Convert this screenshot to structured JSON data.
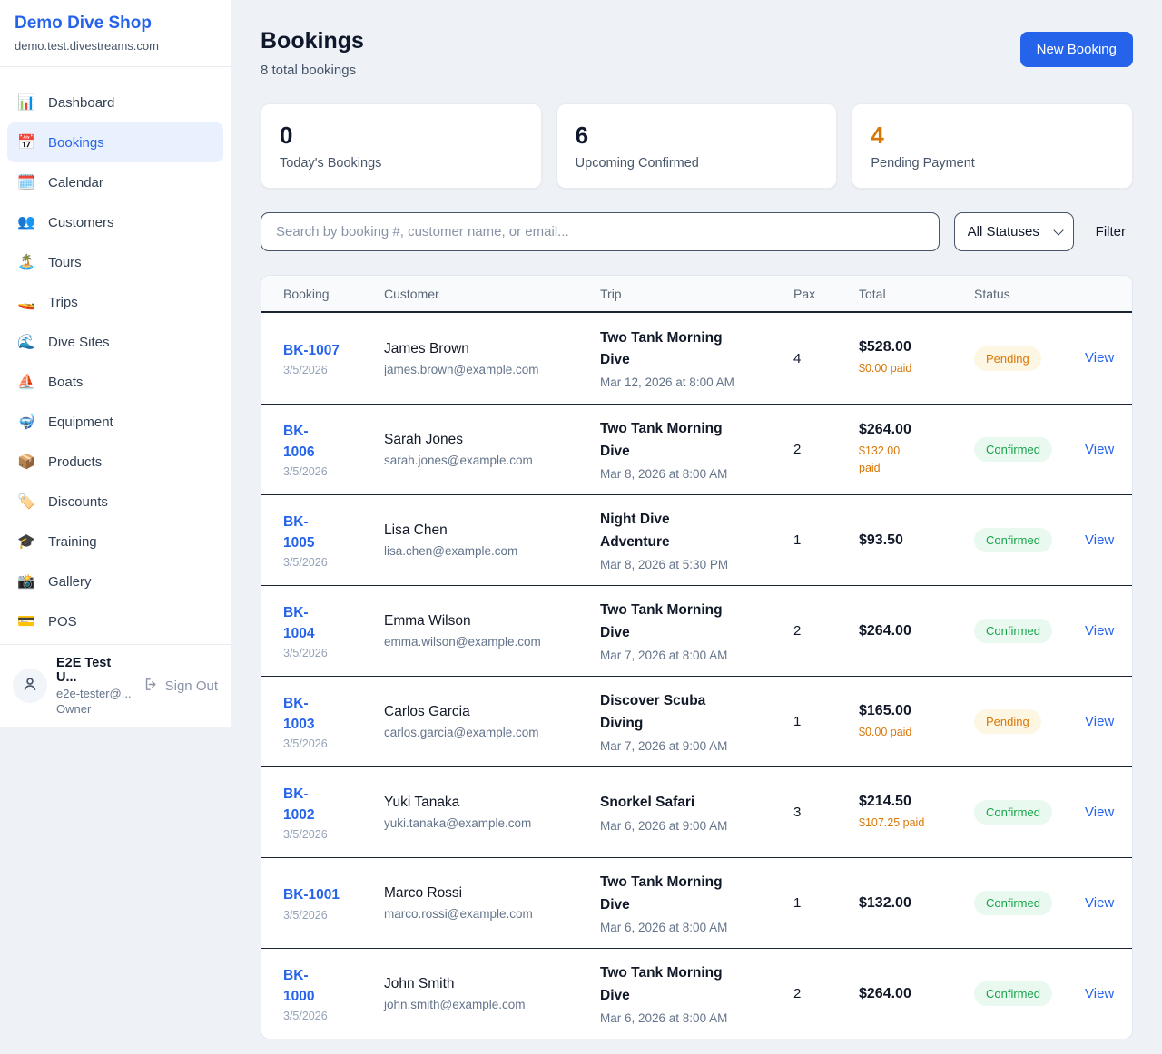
{
  "colors": {
    "accent_blue": "#2563eb",
    "pending_text": "#d97706",
    "pending_bg": "#fdf6e3",
    "confirmed_text": "#16a34a",
    "confirmed_bg": "#e9f9ef",
    "page_bg": "#eef1f6"
  },
  "sidebar": {
    "brand": "Demo Dive Shop",
    "domain": "demo.test.divestreams.com",
    "items": [
      {
        "icon": "📊",
        "label": "Dashboard",
        "active": false
      },
      {
        "icon": "📅",
        "label": "Bookings",
        "active": true
      },
      {
        "icon": "🗓️",
        "label": "Calendar",
        "active": false
      },
      {
        "icon": "👥",
        "label": "Customers",
        "active": false
      },
      {
        "icon": "🏝️",
        "label": "Tours",
        "active": false
      },
      {
        "icon": "🚤",
        "label": "Trips",
        "active": false
      },
      {
        "icon": "🌊",
        "label": "Dive Sites",
        "active": false
      },
      {
        "icon": "⛵",
        "label": "Boats",
        "active": false
      },
      {
        "icon": "🤿",
        "label": "Equipment",
        "active": false
      },
      {
        "icon": "📦",
        "label": "Products",
        "active": false
      },
      {
        "icon": "🏷️",
        "label": "Discounts",
        "active": false
      },
      {
        "icon": "🎓",
        "label": "Training",
        "active": false
      },
      {
        "icon": "📸",
        "label": "Gallery",
        "active": false
      },
      {
        "icon": "💳",
        "label": "POS",
        "active": false
      }
    ],
    "user": {
      "name": "E2E Test U...",
      "email": "e2e-tester@...",
      "role": "Owner",
      "signout_label": "Sign Out"
    }
  },
  "header": {
    "title": "Bookings",
    "subtitle": "8 total bookings",
    "new_booking_label": "New Booking"
  },
  "stats": [
    {
      "value": "0",
      "label": "Today's Bookings",
      "accent": "dark"
    },
    {
      "value": "6",
      "label": "Upcoming Confirmed",
      "accent": "dark"
    },
    {
      "value": "4",
      "label": "Pending Payment",
      "accent": "orange"
    }
  ],
  "controls": {
    "search_placeholder": "Search by booking #, customer name, or email...",
    "status_filter_value": "All Statuses",
    "filter_label": "Filter"
  },
  "table": {
    "columns": [
      "Booking",
      "Customer",
      "Trip",
      "Pax",
      "Total",
      "Status",
      ""
    ],
    "view_label": "View",
    "rows": [
      {
        "id": "BK-1007",
        "date": "3/5/2026",
        "name": "James Brown",
        "email": "james.brown@example.com",
        "trip": "Two Tank Morning Dive",
        "when": "Mar 12, 2026 at 8:00 AM",
        "pax": "4",
        "total": "$528.00",
        "paid": "$0.00 paid",
        "status": "Pending"
      },
      {
        "id": "BK-\n1006",
        "date": "3/5/2026",
        "name": "Sarah Jones",
        "email": "sarah.jones@example.com",
        "trip": "Two Tank Morning Dive",
        "when": "Mar 8, 2026 at 8:00 AM",
        "pax": "2",
        "total": "$264.00",
        "paid": "$132.00\npaid",
        "status": "Confirmed"
      },
      {
        "id": "BK-\n1005",
        "date": "3/5/2026",
        "name": "Lisa Chen",
        "email": "lisa.chen@example.com",
        "trip": "Night Dive Adventure",
        "when": "Mar 8, 2026 at 5:30 PM",
        "pax": "1",
        "total": "$93.50",
        "paid": null,
        "status": "Confirmed"
      },
      {
        "id": "BK-\n1004",
        "date": "3/5/2026",
        "name": "Emma Wilson",
        "email": "emma.wilson@example.com",
        "trip": "Two Tank Morning Dive",
        "when": "Mar 7, 2026 at 8:00 AM",
        "pax": "2",
        "total": "$264.00",
        "paid": null,
        "status": "Confirmed"
      },
      {
        "id": "BK-\n1003",
        "date": "3/5/2026",
        "name": "Carlos Garcia",
        "email": "carlos.garcia@example.com",
        "trip": "Discover Scuba Diving",
        "when": "Mar 7, 2026 at 9:00 AM",
        "pax": "1",
        "total": "$165.00",
        "paid": "$0.00 paid",
        "status": "Pending"
      },
      {
        "id": "BK-\n1002",
        "date": "3/5/2026",
        "name": "Yuki Tanaka",
        "email": "yuki.tanaka@example.com",
        "trip": "Snorkel Safari",
        "when": "Mar 6, 2026 at 9:00 AM",
        "pax": "3",
        "total": "$214.50",
        "paid": "$107.25 paid",
        "status": "Confirmed"
      },
      {
        "id": "BK-1001",
        "date": "3/5/2026",
        "name": "Marco Rossi",
        "email": "marco.rossi@example.com",
        "trip": "Two Tank Morning Dive",
        "when": "Mar 6, 2026 at 8:00 AM",
        "pax": "1",
        "total": "$132.00",
        "paid": null,
        "status": "Confirmed"
      },
      {
        "id": "BK-\n1000",
        "date": "3/5/2026",
        "name": "John Smith",
        "email": "john.smith@example.com",
        "trip": "Two Tank Morning Dive",
        "when": "Mar 6, 2026 at 8:00 AM",
        "pax": "2",
        "total": "$264.00",
        "paid": null,
        "status": "Confirmed"
      }
    ]
  }
}
